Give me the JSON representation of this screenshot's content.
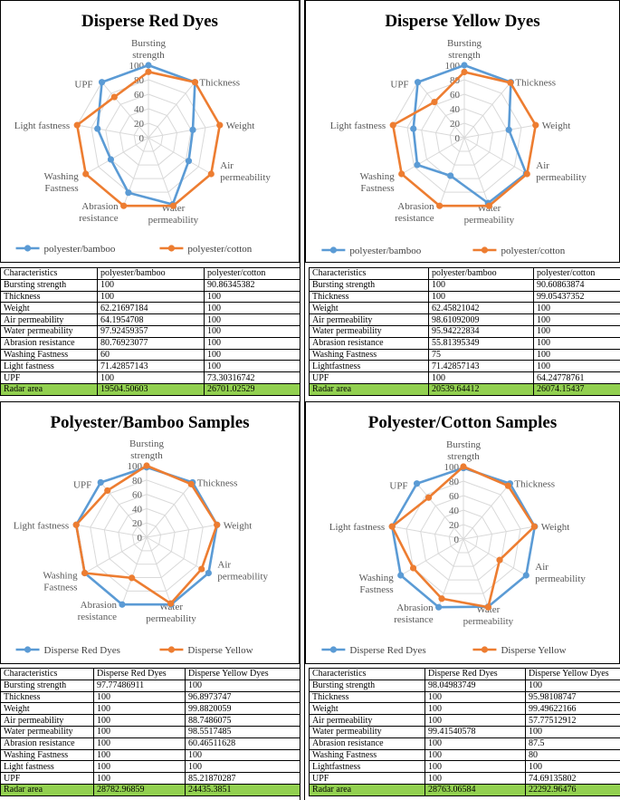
{
  "colors": {
    "series1": "#5b9bd5",
    "series2": "#ed7d31",
    "grid": "#d9d9d9",
    "radar_row": "#92d050"
  },
  "chart_data": [
    {
      "type": "radar",
      "title": "Disperse Red Dyes",
      "axes": [
        "Bursting strength",
        "Thickness",
        "Weight",
        "Air permeability",
        "Water permeability",
        "Abrasion resistance",
        "Washing Fastness",
        "Light fastness",
        "UPF"
      ],
      "ticks": [
        "0",
        "20",
        "40",
        "60",
        "80",
        "100"
      ],
      "rlim": [
        0,
        100
      ],
      "series": [
        {
          "name": "polyester/bamboo",
          "values": [
            100,
            100,
            62.21697184,
            64.1954708,
            97.92459357,
            80.76923077,
            60,
            71.42857143,
            100
          ]
        },
        {
          "name": "polyester/cotton",
          "values": [
            90.86345382,
            100,
            100,
            100,
            100,
            100,
            100,
            100,
            73.30316742
          ]
        }
      ]
    },
    {
      "type": "radar",
      "title": "Disperse Yellow Dyes",
      "axes": [
        "Bursting strength",
        "Thickness",
        "Weight",
        "Air permeability",
        "Water permeability",
        "Abrasion resistance",
        "Washing Fastness",
        "Light fastness",
        "UPF"
      ],
      "ticks": [
        "0",
        "20",
        "40",
        "60",
        "80",
        "100"
      ],
      "rlim": [
        0,
        100
      ],
      "series": [
        {
          "name": "polyester/bamboo",
          "values": [
            100,
            100,
            62.45821042,
            98.61092009,
            95.94222834,
            55.81395349,
            75,
            71.42857143,
            100
          ]
        },
        {
          "name": "polyester/cotton",
          "values": [
            90.60863874,
            99.05437352,
            100,
            100,
            100,
            100,
            100,
            100,
            64.24778761
          ]
        }
      ]
    },
    {
      "type": "radar",
      "title": "Polyester/Bamboo Samples",
      "axes": [
        "Bursting strength",
        "Thickness",
        "Weight",
        "Air permeability",
        "Water permeability",
        "Abrasion resistance",
        "Washing Fastness",
        "Light fastness",
        "UPF"
      ],
      "ticks": [
        "0",
        "20",
        "40",
        "60",
        "80",
        "100"
      ],
      "rlim": [
        0,
        100
      ],
      "series": [
        {
          "name": "Disperse Red Dyes",
          "values": [
            97.77486911,
            100,
            100,
            100,
            100,
            100,
            100,
            100,
            100
          ]
        },
        {
          "name": "Disperse Yellow",
          "values": [
            100,
            96.8973747,
            99.8820059,
            88.7486075,
            98.5517485,
            60.46511628,
            100,
            100,
            85.21870287
          ]
        }
      ]
    },
    {
      "type": "radar",
      "title": "Polyester/Cotton Samples",
      "axes": [
        "Bursting strength",
        "Thickness",
        "Weight",
        "Air permeability",
        "Water permeability",
        "Abrasion resistance",
        "Washing Fastness",
        "Light fastness",
        "UPF"
      ],
      "ticks": [
        "0",
        "20",
        "40",
        "60",
        "80",
        "100"
      ],
      "rlim": [
        0,
        100
      ],
      "series": [
        {
          "name": "Disperse Red Dyes",
          "values": [
            98.04983749,
            100,
            100,
            100,
            99.41540578,
            100,
            100,
            100,
            100
          ]
        },
        {
          "name": "Disperse Yellow",
          "values": [
            100,
            95.98108747,
            99.49622166,
            57.77512912,
            100,
            87.5,
            80,
            100,
            74.69135802
          ]
        }
      ]
    }
  ],
  "tables": [
    {
      "header": [
        "Characteristics",
        "polyester/bamboo",
        "polyester/cotton"
      ],
      "rows": [
        [
          "Bursting strength",
          "100",
          "90.86345382"
        ],
        [
          "Thickness",
          "100",
          "100"
        ],
        [
          "Weight",
          "62.21697184",
          "100"
        ],
        [
          "Air  permeability",
          "64.1954708",
          "100"
        ],
        [
          "Water permeability",
          "97.92459357",
          "100"
        ],
        [
          "Abrasion resistance",
          "80.76923077",
          "100"
        ],
        [
          "Washing Fastness",
          "60",
          "100"
        ],
        [
          "Light fastness",
          "71.42857143",
          "100"
        ],
        [
          "UPF",
          "100",
          "73.30316742"
        ]
      ],
      "radar": [
        "Radar area",
        "19504.50603",
        "26701.02529"
      ]
    },
    {
      "header": [
        "Characteristics",
        "polyester/bamboo",
        "polyester/cotton"
      ],
      "rows": [
        [
          "Bursting strength",
          "100",
          "90.60863874"
        ],
        [
          "Thickness",
          "100",
          "99.05437352"
        ],
        [
          "Weight",
          "62.45821042",
          "100"
        ],
        [
          "Air  permeability",
          "98.61092009",
          "100"
        ],
        [
          "Water permeability",
          "95.94222834",
          "100"
        ],
        [
          "Abrasion resistance",
          "55.81395349",
          "100"
        ],
        [
          "Washing Fastness",
          "75",
          "100"
        ],
        [
          "Lightfastness",
          "71.42857143",
          "100"
        ],
        [
          "UPF",
          "100",
          "64.24778761"
        ]
      ],
      "radar": [
        "Radar area",
        "20539.64412",
        "26074.15437"
      ]
    },
    {
      "header": [
        "Characteristics",
        "Disperse Red Dyes",
        "Disperse Yellow Dyes"
      ],
      "rows": [
        [
          "Bursting strength",
          "97.77486911",
          "100"
        ],
        [
          "Thickness",
          "100",
          "96.8973747"
        ],
        [
          "Weight",
          "100",
          "99.8820059"
        ],
        [
          "Air  permeability",
          "100",
          "88.7486075"
        ],
        [
          "Water permeability",
          "100",
          "98.5517485"
        ],
        [
          "Abrasion resistance",
          "100",
          "60.46511628"
        ],
        [
          "Washing Fastness",
          "100",
          "100"
        ],
        [
          "Light fastness",
          "100",
          "100"
        ],
        [
          "UPF",
          "100",
          "85.21870287"
        ]
      ],
      "radar": [
        "Radar area",
        "28782.96859",
        "24435.3851"
      ]
    },
    {
      "header": [
        "Characteristics",
        "Disperse Red Dyes",
        "Disperse Yellow Dyes"
      ],
      "rows": [
        [
          "Bursting strength",
          "98.04983749",
          "100"
        ],
        [
          "Thickness",
          "100",
          "95.98108747"
        ],
        [
          "Weight",
          "100",
          "99.49622166"
        ],
        [
          "Air  permeability",
          "100",
          "57.77512912"
        ],
        [
          "Water permeability",
          "99.41540578",
          "100"
        ],
        [
          "Abrasion resistance",
          "100",
          "87.5"
        ],
        [
          "Washing Fastness",
          "100",
          "80"
        ],
        [
          "Lightfastness",
          "100",
          "100"
        ],
        [
          "UPF",
          "100",
          "74.69135802"
        ]
      ],
      "radar": [
        "Radar area",
        "28763.06584",
        "22292.96476"
      ]
    }
  ]
}
